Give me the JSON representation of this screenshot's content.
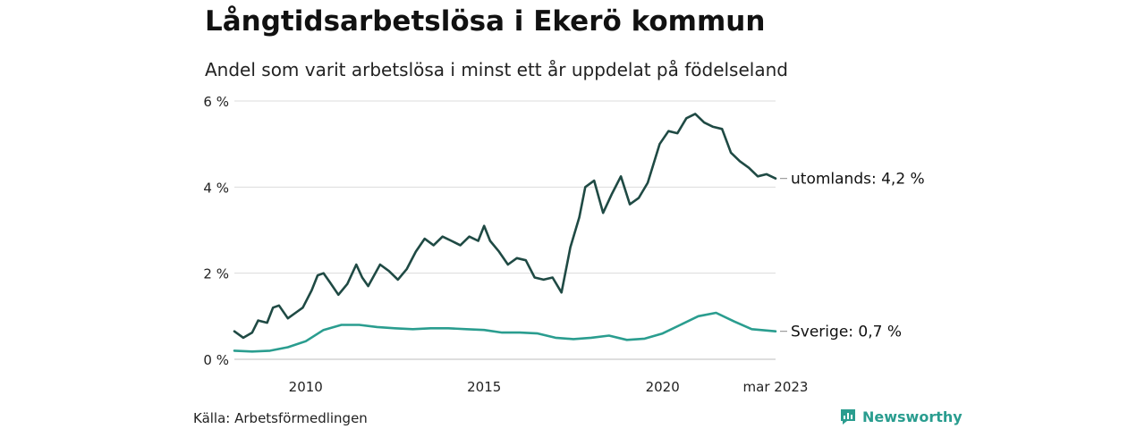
{
  "header": {
    "title": "Långtidsarbetslösa i Ekerö kommun",
    "subtitle": "Andel som varit arbetslösa i minst ett år uppdelat på födelseland"
  },
  "footer": {
    "source": "Källa: Arbetsförmedlingen",
    "brand": "Newsworthy",
    "brand_icon": "newsworthy-logo-icon",
    "brand_color": "#2a9d8f"
  },
  "chart_data": {
    "type": "line",
    "x_ticks": [
      "2010",
      "2015",
      "2020",
      "mar 2023"
    ],
    "y_ticks": [
      "0 %",
      "2 %",
      "4 %",
      "6 %"
    ],
    "ylim": [
      0,
      6
    ],
    "x_range": [
      "2008-01",
      "2023-03"
    ],
    "grid": true,
    "series": [
      {
        "name": "utomlands",
        "end_label": "utomlands: 4,2 %",
        "color": "#1f4a44",
        "points": [
          [
            "2008-01",
            0.65
          ],
          [
            "2008-04",
            0.5
          ],
          [
            "2008-07",
            0.62
          ],
          [
            "2008-09",
            0.9
          ],
          [
            "2008-12",
            0.85
          ],
          [
            "2009-02",
            1.2
          ],
          [
            "2009-04",
            1.25
          ],
          [
            "2009-07",
            0.95
          ],
          [
            "2009-10",
            1.1
          ],
          [
            "2009-12",
            1.2
          ],
          [
            "2010-03",
            1.6
          ],
          [
            "2010-05",
            1.95
          ],
          [
            "2010-07",
            2.0
          ],
          [
            "2010-09",
            1.8
          ],
          [
            "2010-12",
            1.5
          ],
          [
            "2011-03",
            1.75
          ],
          [
            "2011-06",
            2.2
          ],
          [
            "2011-08",
            1.9
          ],
          [
            "2011-10",
            1.7
          ],
          [
            "2012-02",
            2.2
          ],
          [
            "2012-05",
            2.05
          ],
          [
            "2012-08",
            1.85
          ],
          [
            "2012-11",
            2.1
          ],
          [
            "2013-02",
            2.5
          ],
          [
            "2013-05",
            2.8
          ],
          [
            "2013-08",
            2.65
          ],
          [
            "2013-11",
            2.85
          ],
          [
            "2014-02",
            2.75
          ],
          [
            "2014-05",
            2.65
          ],
          [
            "2014-08",
            2.85
          ],
          [
            "2014-11",
            2.75
          ],
          [
            "2015-01",
            3.1
          ],
          [
            "2015-03",
            2.75
          ],
          [
            "2015-06",
            2.5
          ],
          [
            "2015-09",
            2.2
          ],
          [
            "2015-12",
            2.35
          ],
          [
            "2016-03",
            2.3
          ],
          [
            "2016-06",
            1.9
          ],
          [
            "2016-09",
            1.85
          ],
          [
            "2016-12",
            1.9
          ],
          [
            "2017-03",
            1.55
          ],
          [
            "2017-06",
            2.6
          ],
          [
            "2017-09",
            3.3
          ],
          [
            "2017-11",
            4.0
          ],
          [
            "2018-02",
            4.15
          ],
          [
            "2018-05",
            3.4
          ],
          [
            "2018-08",
            3.85
          ],
          [
            "2018-11",
            4.25
          ],
          [
            "2019-02",
            3.6
          ],
          [
            "2019-05",
            3.75
          ],
          [
            "2019-08",
            4.1
          ],
          [
            "2019-12",
            5.0
          ],
          [
            "2020-03",
            5.3
          ],
          [
            "2020-06",
            5.25
          ],
          [
            "2020-09",
            5.6
          ],
          [
            "2020-12",
            5.7
          ],
          [
            "2021-03",
            5.5
          ],
          [
            "2021-06",
            5.4
          ],
          [
            "2021-09",
            5.35
          ],
          [
            "2021-12",
            4.8
          ],
          [
            "2022-03",
            4.6
          ],
          [
            "2022-06",
            4.45
          ],
          [
            "2022-09",
            4.25
          ],
          [
            "2022-12",
            4.3
          ],
          [
            "2023-03",
            4.2
          ]
        ]
      },
      {
        "name": "Sverige",
        "end_label": "Sverige: 0,7 %",
        "color": "#2a9d8f",
        "points": [
          [
            "2008-01",
            0.2
          ],
          [
            "2008-07",
            0.18
          ],
          [
            "2009-01",
            0.2
          ],
          [
            "2009-07",
            0.28
          ],
          [
            "2010-01",
            0.42
          ],
          [
            "2010-07",
            0.68
          ],
          [
            "2011-01",
            0.8
          ],
          [
            "2011-07",
            0.8
          ],
          [
            "2012-01",
            0.75
          ],
          [
            "2012-07",
            0.72
          ],
          [
            "2013-01",
            0.7
          ],
          [
            "2013-07",
            0.72
          ],
          [
            "2014-01",
            0.72
          ],
          [
            "2014-07",
            0.7
          ],
          [
            "2015-01",
            0.68
          ],
          [
            "2015-07",
            0.62
          ],
          [
            "2016-01",
            0.62
          ],
          [
            "2016-07",
            0.6
          ],
          [
            "2017-01",
            0.5
          ],
          [
            "2017-07",
            0.47
          ],
          [
            "2018-01",
            0.5
          ],
          [
            "2018-07",
            0.55
          ],
          [
            "2019-01",
            0.45
          ],
          [
            "2019-07",
            0.48
          ],
          [
            "2020-01",
            0.6
          ],
          [
            "2020-07",
            0.8
          ],
          [
            "2021-01",
            1.0
          ],
          [
            "2021-07",
            1.08
          ],
          [
            "2022-01",
            0.88
          ],
          [
            "2022-07",
            0.7
          ],
          [
            "2023-03",
            0.65
          ]
        ]
      }
    ]
  }
}
